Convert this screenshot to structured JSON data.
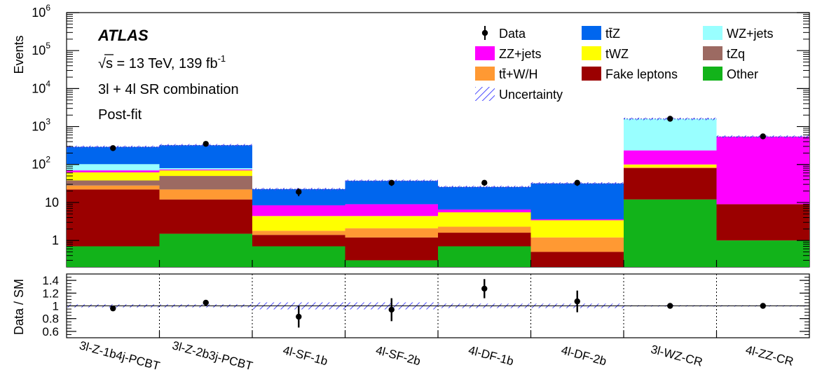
{
  "chart_data": {
    "type": "bar",
    "stacked": true,
    "y_scale": "log",
    "ylim": [
      0.2,
      1000000
    ],
    "ylabel": "Events",
    "ratio_ylabel": "Data / SM",
    "ratio_ylim": [
      0.5,
      1.5
    ],
    "categories": [
      "3l-Z-1b4j-PCBT",
      "3l-Z-2b3j-PCBT",
      "4l-SF-1b",
      "4l-SF-2b",
      "4l-DF-1b",
      "4l-DF-2b",
      "3l-WZ-CR",
      "4l-ZZ-CR"
    ],
    "y_ticks": [
      {
        "value": 1,
        "label": "1"
      },
      {
        "value": 10,
        "label": "10"
      },
      {
        "value": 100,
        "label": "10",
        "sup": "2"
      },
      {
        "value": 1000,
        "label": "10",
        "sup": "3"
      },
      {
        "value": 10000,
        "label": "10",
        "sup": "4"
      },
      {
        "value": 100000,
        "label": "10",
        "sup": "5"
      },
      {
        "value": 1000000,
        "label": "10",
        "sup": "6"
      }
    ],
    "ratio_ticks": [
      {
        "value": 0.6,
        "label": "0.6"
      },
      {
        "value": 0.8,
        "label": "0.8"
      },
      {
        "value": 1.0,
        "label": "1"
      },
      {
        "value": 1.2,
        "label": "1.2"
      },
      {
        "value": 1.4,
        "label": "1.4"
      }
    ],
    "series": [
      {
        "name": "Other",
        "color": "#12b31a",
        "values": [
          0.7,
          1.5,
          0.7,
          0.3,
          0.7,
          0.2,
          12,
          1.0
        ]
      },
      {
        "name": "Fake leptons",
        "color": "#9b0000",
        "values": [
          21.3,
          10.5,
          0.7,
          0.9,
          0.9,
          0.3,
          68,
          8.0
        ]
      },
      {
        "name": "tt̄+W/H",
        "color": "#ff9933",
        "values": [
          6,
          10,
          0.4,
          0.9,
          0.7,
          0.7,
          5,
          0
        ]
      },
      {
        "name": "tZq",
        "color": "#9c6a62",
        "values": [
          10,
          28,
          0,
          0,
          0,
          0,
          0,
          0
        ]
      },
      {
        "name": "tWZ",
        "color": "#ffff00",
        "values": [
          24,
          20,
          2.6,
          2.3,
          3.2,
          2.2,
          15,
          0
        ]
      },
      {
        "name": "ZZ+jets",
        "color": "#ff00ff",
        "values": [
          8,
          4,
          4,
          4.6,
          1.0,
          0.2,
          135,
          530
        ]
      },
      {
        "name": "WZ+jets",
        "color": "#99ffff",
        "values": [
          32,
          6,
          0,
          0,
          0,
          0,
          1350,
          0
        ]
      },
      {
        "name": "tt̄Z",
        "color": "#0066ee",
        "values": [
          188,
          240,
          14,
          28,
          19,
          28,
          0,
          0
        ]
      }
    ],
    "data": {
      "name": "Data",
      "values": [
        270,
        350,
        19,
        33,
        33,
        33,
        1600,
        550
      ],
      "errors": [
        16,
        19,
        4.4,
        5.7,
        5.7,
        5.7,
        40,
        23
      ]
    },
    "ratio": {
      "values": [
        0.96,
        1.05,
        0.83,
        0.94,
        1.27,
        1.07,
        1.0,
        1.0
      ],
      "errors": [
        0.04,
        0.03,
        0.17,
        0.18,
        0.15,
        0.17,
        0.015,
        0.02
      ],
      "uncertainty_half_width": [
        0.025,
        0.025,
        0.055,
        0.055,
        0.035,
        0.035,
        0.01,
        0.01
      ]
    },
    "legend": {
      "placement": "top-right",
      "entries": [
        {
          "label": "Data",
          "kind": "data"
        },
        {
          "label": "tt̄Z",
          "color": "#0066ee"
        },
        {
          "label": "WZ+jets",
          "color": "#99ffff"
        },
        {
          "label": "ZZ+jets",
          "color": "#ff00ff"
        },
        {
          "label": "tWZ",
          "color": "#ffff00"
        },
        {
          "label": "tZq",
          "color": "#9c6a62"
        },
        {
          "label": "tt̄+W/H",
          "color": "#ff9933"
        },
        {
          "label": "Fake leptons",
          "color": "#9b0000"
        },
        {
          "label": "Other",
          "color": "#12b31a"
        },
        {
          "label": "Uncertainty",
          "kind": "hatch"
        }
      ]
    },
    "annotations": {
      "experiment": "ATLAS",
      "energy_prefix": "s",
      "energy_text": " = 13 TeV, 139 fb",
      "energy_sup": "-1",
      "region": "3l + 4l SR combination",
      "fit": "Post-fit"
    },
    "grid": false
  }
}
